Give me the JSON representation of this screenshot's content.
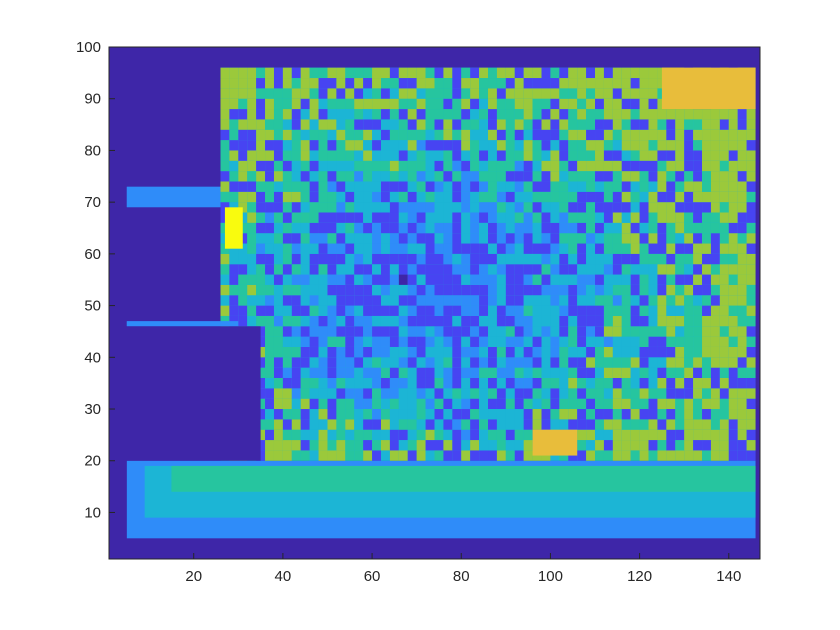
{
  "chart_data": {
    "type": "heatmap",
    "title": "",
    "xlabel": "",
    "ylabel": "",
    "xlim": [
      1,
      147
    ],
    "ylim": [
      1,
      100
    ],
    "x_ticks": [
      "20",
      "40",
      "60",
      "80",
      "100",
      "120",
      "140"
    ],
    "y_ticks": [
      "10",
      "20",
      "30",
      "40",
      "50",
      "60",
      "70",
      "80",
      "90",
      "100"
    ],
    "colormap": [
      "#3e26a8",
      "#4744f2",
      "#2f8cf9",
      "#1cb5d5",
      "#26c59f",
      "#9bc93b",
      "#e8bd3b",
      "#f9fb0e"
    ],
    "regions": [
      {
        "label": "background",
        "x": [
          1,
          147
        ],
        "y": [
          1,
          100
        ],
        "value": 0
      },
      {
        "label": "lower band outer",
        "x": [
          5,
          146
        ],
        "y": [
          5,
          20
        ],
        "value": 0.28
      },
      {
        "label": "lower band middle",
        "x": [
          9,
          146
        ],
        "y": [
          9,
          19
        ],
        "value": 0.45
      },
      {
        "label": "lower band inner",
        "x": [
          15,
          146
        ],
        "y": [
          14,
          19
        ],
        "value": 0.62
      },
      {
        "label": "main region",
        "x": [
          26,
          146
        ],
        "y": [
          20,
          96
        ],
        "value": 0.38
      },
      {
        "label": "left stub upper",
        "x": [
          5,
          26
        ],
        "y": [
          69,
          73
        ],
        "value": 0.35
      },
      {
        "label": "left stub lower",
        "x": [
          5,
          30
        ],
        "y": [
          46,
          47
        ],
        "value": 0.35
      },
      {
        "label": "top-right hot corner",
        "x": [
          125,
          146
        ],
        "y": [
          88,
          96
        ],
        "value": 0.9
      },
      {
        "label": "upper-left hot spot",
        "x": [
          27,
          31
        ],
        "y": [
          61,
          69
        ],
        "value": 0.95
      },
      {
        "label": "lower-middle hot spot",
        "x": [
          96,
          106
        ],
        "y": [
          21,
          26
        ],
        "value": 0.9
      }
    ]
  }
}
